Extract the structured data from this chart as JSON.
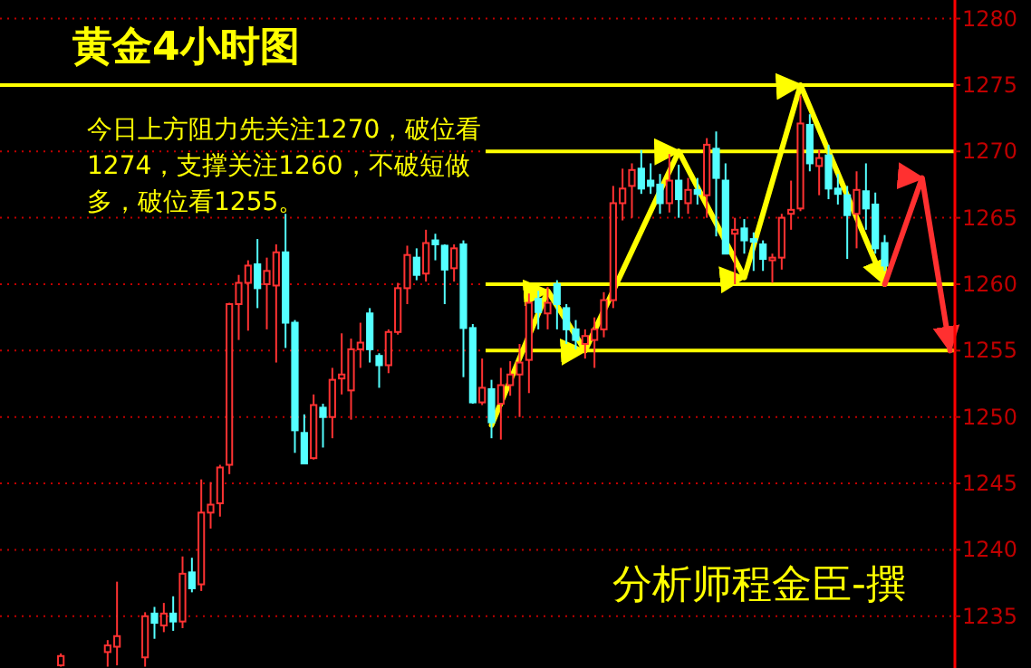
{
  "chart_data": {
    "type": "candlestick",
    "title": "黄金4小时图",
    "annotations": [
      "今日上方阻力先关注1270，破位看1274，支撑关注1260，不破短做多，破位看1255。",
      "分析师程金臣-撰"
    ],
    "categories": [
      null,
      null,
      null,
      null,
      null,
      null,
      null,
      null,
      null,
      null,
      null,
      null,
      null,
      null,
      null,
      null,
      null,
      null,
      null,
      null,
      null,
      null,
      null,
      null,
      null,
      null,
      null,
      null,
      null,
      null,
      null,
      null,
      null,
      null,
      null,
      null,
      null,
      null,
      null,
      null,
      null,
      null,
      null,
      null,
      null,
      null,
      null,
      null,
      null,
      null,
      null,
      null,
      null,
      null,
      null,
      null,
      null,
      null,
      null,
      null,
      null,
      null,
      null,
      null,
      null,
      null,
      null,
      null,
      null,
      null,
      null,
      null,
      null,
      null,
      null,
      null,
      null,
      null,
      null,
      null,
      null,
      null,
      null,
      null,
      null,
      null,
      null,
      null,
      null,
      null,
      null,
      null,
      null,
      null,
      null,
      null,
      null,
      null,
      null,
      null,
      null,
      null
    ],
    "ohlc": [
      null,
      null,
      null,
      null,
      null,
      null,
      [
        1231.3,
        1232.2,
        1231.2,
        1232.0
      ],
      null,
      null,
      null,
      null,
      [
        1232.3,
        1233.2,
        1231.2,
        1232.8
      ],
      [
        1232.7,
        1237.6,
        1231.3,
        1233.5
      ],
      null,
      null,
      [
        1231.9,
        1235.3,
        1231.2,
        1235.0
      ],
      [
        1235.2,
        1235.7,
        1233.3,
        1234.5
      ],
      [
        1234.3,
        1236.0,
        1233.8,
        1235.2
      ],
      [
        1235.2,
        1236.5,
        1233.9,
        1234.6
      ],
      [
        1234.6,
        1239.5,
        1234.1,
        1238.2
      ],
      [
        1238.3,
        1239.4,
        1236.8,
        1237.1
      ],
      [
        1237.4,
        1245.3,
        1236.9,
        1242.8
      ],
      [
        1242.8,
        1245.1,
        1241.6,
        1243.4
      ],
      [
        1243.5,
        1246.4,
        1242.5,
        1246.2
      ],
      [
        1246.4,
        1258.6,
        1245.7,
        1258.5
      ],
      [
        1258.5,
        1260.7,
        1255.8,
        1260.1
      ],
      [
        1260.1,
        1261.8,
        1256.5,
        1261.4
      ],
      [
        1261.5,
        1263.4,
        1258.2,
        1259.7
      ],
      [
        1260.0,
        1262.0,
        1256.6,
        1261.0
      ],
      [
        1259.9,
        1263.0,
        1254.1,
        1262.4
      ],
      [
        1262.4,
        1265.3,
        1255.2,
        1257.1
      ],
      [
        1257.1,
        1257.3,
        1247.3,
        1249.0
      ],
      [
        1248.8,
        1250.2,
        1246.5,
        1246.5
      ],
      [
        1246.9,
        1251.7,
        1246.8,
        1250.9
      ],
      [
        1250.7,
        1251.0,
        1247.7,
        1250.0
      ],
      [
        1250.0,
        1253.7,
        1248.4,
        1252.8
      ],
      [
        1252.9,
        1256.3,
        1251.7,
        1253.2
      ],
      [
        1252.0,
        1255.9,
        1249.8,
        1255.1
      ],
      [
        1255.1,
        1257.1,
        1253.7,
        1255.6
      ],
      [
        1257.8,
        1258.2,
        1254.1,
        1255.1
      ],
      [
        1254.6,
        1254.8,
        1252.2,
        1253.9
      ],
      [
        1253.9,
        1256.6,
        1253.3,
        1256.4
      ],
      [
        1256.4,
        1260.1,
        1256.2,
        1259.7
      ],
      [
        1259.7,
        1262.9,
        1258.5,
        1262.2
      ],
      [
        1262.0,
        1262.7,
        1260.3,
        1260.7
      ],
      [
        1260.8,
        1264.1,
        1260.2,
        1263.1
      ],
      [
        1263.3,
        1263.8,
        1261.8,
        1263.0
      ],
      [
        1262.9,
        1263.0,
        1258.5,
        1261.1
      ],
      [
        1261.2,
        1263.0,
        1260.2,
        1262.7
      ],
      [
        1263.0,
        1263.3,
        1253.0,
        1256.7
      ],
      [
        1256.7,
        1257.0,
        1251.0,
        1251.1
      ],
      [
        1251.1,
        1254.4,
        1250.9,
        1252.2
      ],
      [
        1252.1,
        1252.8,
        1248.4,
        1249.6
      ],
      [
        1251.0,
        1253.7,
        1248.3,
        1252.4
      ],
      [
        1252.4,
        1254.2,
        1251.6,
        1253.2
      ],
      [
        1253.2,
        1255.5,
        1250.0,
        1254.1
      ],
      [
        1254.3,
        1259.3,
        1251.8,
        1258.6
      ],
      [
        1258.9,
        1259.5,
        1256.6,
        1257.9
      ],
      [
        1257.8,
        1259.8,
        1256.6,
        1258.6
      ],
      [
        1260.0,
        1260.3,
        1256.6,
        1258.5
      ],
      [
        1258.2,
        1258.5,
        1255.5,
        1256.6
      ],
      [
        1256.6,
        1257.3,
        1255.1,
        1255.8
      ],
      [
        1255.5,
        1256.6,
        1254.4,
        1256.1
      ],
      [
        1255.8,
        1257.5,
        1253.7,
        1256.6
      ],
      [
        1256.6,
        1259.4,
        1256.0,
        1258.8
      ],
      [
        1258.8,
        1267.4,
        1258.2,
        1266.1
      ],
      [
        1266.1,
        1268.7,
        1264.8,
        1267.2
      ],
      [
        1267.4,
        1269.1,
        1265.0,
        1268.6
      ],
      [
        1268.7,
        1270.1,
        1266.8,
        1267.2
      ],
      [
        1267.8,
        1269.1,
        1266.8,
        1267.4
      ],
      [
        1267.5,
        1268.3,
        1265.3,
        1266.1
      ],
      [
        1266.1,
        1269.8,
        1265.4,
        1267.8
      ],
      [
        1267.8,
        1269.0,
        1265.0,
        1266.4
      ],
      [
        1266.1,
        1268.0,
        1265.3,
        1267.1
      ],
      [
        1267.1,
        1268.0,
        1266.0,
        1266.8
      ],
      [
        1266.7,
        1271.0,
        1265.0,
        1270.5
      ],
      [
        1270.2,
        1271.5,
        1263.6,
        1268.0
      ],
      [
        1267.8,
        1269.1,
        1262.3,
        1262.3
      ],
      [
        1263.8,
        1265.0,
        1260.0,
        1264.1
      ],
      [
        1264.2,
        1264.9,
        1262.3,
        1263.3
      ],
      [
        1263.4,
        1263.9,
        1261.0,
        1263.2
      ],
      [
        1263.0,
        1263.3,
        1261.0,
        1261.9
      ],
      [
        1261.8,
        1262.3,
        1260.1,
        1262.0
      ],
      [
        1262.0,
        1265.3,
        1261.1,
        1265.0
      ],
      [
        1265.3,
        1267.8,
        1264.1,
        1265.6
      ],
      [
        1265.7,
        1274.2,
        1265.5,
        1272.1
      ],
      [
        1272.0,
        1272.8,
        1268.5,
        1269.1
      ],
      [
        1268.9,
        1270.1,
        1266.7,
        1269.5
      ],
      [
        1269.7,
        1270.5,
        1266.4,
        1267.2
      ],
      [
        1267.2,
        1268.3,
        1266.0,
        1266.8
      ],
      [
        1266.7,
        1267.4,
        1261.9,
        1265.2
      ],
      [
        1265.3,
        1268.5,
        1262.7,
        1267.1
      ],
      [
        1267.0,
        1269.1,
        1264.1,
        1265.7
      ],
      [
        1266.0,
        1266.9,
        1262.3,
        1262.7
      ],
      [
        1263.1,
        1263.7,
        1261.0,
        1261.4
      ],
      null,
      null,
      null,
      null,
      null,
      null,
      null
    ],
    "series": [
      {
        "type": "line",
        "color": "#ffff00",
        "values": [
          null,
          null,
          null,
          null,
          null,
          null,
          null,
          null,
          null,
          null,
          null,
          null,
          null,
          null,
          null,
          null,
          null,
          null,
          null,
          null,
          null,
          null,
          null,
          null,
          null,
          null,
          null,
          null,
          null,
          null,
          null,
          null,
          null,
          null,
          null,
          null,
          null,
          null,
          null,
          null,
          null,
          null,
          null,
          null,
          null,
          null,
          null,
          null,
          null,
          null,
          null,
          null,
          1249.4,
          null,
          null,
          null,
          null,
          null,
          1259.5,
          null,
          null,
          null,
          1255,
          null,
          null,
          null,
          null,
          null,
          null,
          null,
          null,
          null,
          1270,
          null,
          null,
          null,
          null,
          null,
          null,
          1260.5,
          null,
          null,
          null,
          null,
          null,
          1275,
          null,
          null,
          null,
          null,
          null,
          null,
          null,
          null,
          1260,
          null,
          null,
          null,
          null,
          null,
          null,
          null
        ]
      },
      {
        "type": "line",
        "color": "#ff3030",
        "values": [
          null,
          null,
          null,
          null,
          null,
          null,
          null,
          null,
          null,
          null,
          null,
          null,
          null,
          null,
          null,
          null,
          null,
          null,
          null,
          null,
          null,
          null,
          null,
          null,
          null,
          null,
          null,
          null,
          null,
          null,
          null,
          null,
          null,
          null,
          null,
          null,
          null,
          null,
          null,
          null,
          null,
          null,
          null,
          null,
          null,
          null,
          null,
          null,
          null,
          null,
          null,
          null,
          null,
          null,
          null,
          null,
          null,
          null,
          null,
          null,
          null,
          null,
          null,
          null,
          null,
          null,
          null,
          null,
          null,
          null,
          null,
          null,
          null,
          null,
          null,
          null,
          null,
          null,
          null,
          null,
          null,
          null,
          null,
          null,
          null,
          null,
          null,
          null,
          null,
          null,
          null,
          null,
          null,
          null,
          1260,
          null,
          null,
          null,
          1268,
          null,
          null,
          1255
        ]
      }
    ],
    "ref_lines": [
      {
        "axis": "y",
        "value": 1275,
        "color": "#ffff00"
      },
      {
        "axis": "y",
        "value": 1270,
        "color": "#ffff00"
      },
      {
        "axis": "y",
        "value": 1260,
        "color": "#ffff00"
      },
      {
        "axis": "y",
        "value": 1255,
        "color": "#ffff00"
      }
    ],
    "ylim": [
      1231.1,
      1281.4
    ],
    "yticks": [
      1235,
      1240,
      1245,
      1250,
      1255,
      1260,
      1265,
      1270,
      1275,
      1280
    ],
    "grid": "y"
  }
}
